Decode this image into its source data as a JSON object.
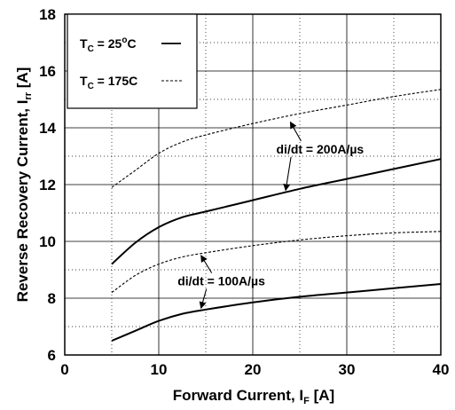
{
  "chart_data": {
    "type": "line",
    "xlabel": "Forward Current, I",
    "xlabel_sub": "F",
    "xlabel_unit": " [A]",
    "ylabel": "Reverse Recovery Current, I",
    "ylabel_sub": "rr",
    "ylabel_unit": " [A]",
    "xlim": [
      0,
      40
    ],
    "ylim": [
      6,
      18
    ],
    "xticks": [
      0,
      10,
      20,
      30,
      40
    ],
    "yticks": [
      6,
      8,
      10,
      12,
      14,
      16,
      18
    ],
    "grid": true,
    "legend": {
      "placement": "top-left",
      "entries": [
        {
          "label": "T",
          "sub": "C",
          "rest": " = 25",
          "sup": "o",
          "tail": "C",
          "style": "solid"
        },
        {
          "label": "T",
          "sub": "C",
          "rest": " = 175C",
          "sup": "",
          "tail": "",
          "style": "dashed"
        }
      ]
    },
    "series": [
      {
        "style": "dashed",
        "x": [
          5,
          7.5,
          10,
          12.5,
          15,
          20,
          25,
          30,
          35,
          40
        ],
        "y": [
          11.9,
          12.5,
          13.1,
          13.5,
          13.75,
          14.15,
          14.5,
          14.8,
          15.1,
          15.35
        ]
      },
      {
        "style": "solid",
        "x": [
          5,
          7.5,
          10,
          12.5,
          15,
          20,
          25,
          30,
          35,
          40
        ],
        "y": [
          9.2,
          9.95,
          10.5,
          10.85,
          11.05,
          11.45,
          11.85,
          12.2,
          12.55,
          12.9
        ]
      },
      {
        "style": "dashed",
        "x": [
          5,
          7.5,
          10,
          12.5,
          15,
          20,
          25,
          30,
          35,
          40
        ],
        "y": [
          8.2,
          8.8,
          9.2,
          9.45,
          9.6,
          9.85,
          10.05,
          10.2,
          10.3,
          10.35
        ]
      },
      {
        "style": "solid",
        "x": [
          5,
          7.5,
          10,
          12.5,
          15,
          20,
          25,
          30,
          35,
          40
        ],
        "y": [
          6.5,
          6.85,
          7.2,
          7.45,
          7.6,
          7.85,
          8.05,
          8.2,
          8.35,
          8.5
        ]
      }
    ],
    "annotations": [
      {
        "text": "di/dt = 200A/µs",
        "x": 22.5,
        "y": 13.1,
        "arrows": [
          [
            24,
            14.2
          ],
          [
            23.5,
            11.8
          ]
        ]
      },
      {
        "text": "di/dt = 100A/µs",
        "x": 12,
        "y": 8.45,
        "arrows": [
          [
            14.5,
            9.5
          ],
          [
            14.5,
            7.65
          ]
        ]
      }
    ]
  }
}
